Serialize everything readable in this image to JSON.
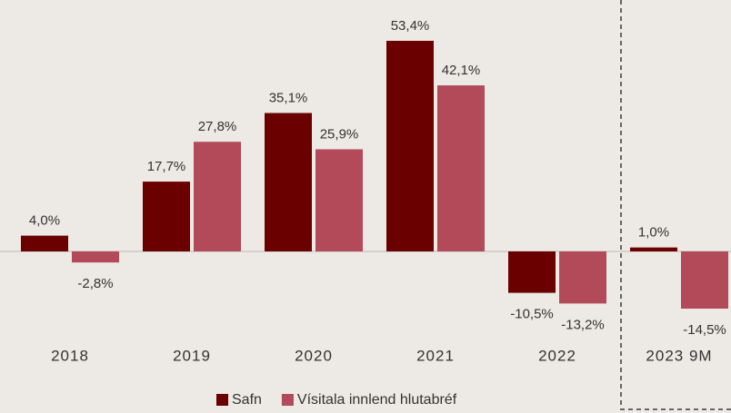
{
  "chart_data": {
    "type": "bar",
    "categories": [
      "2018",
      "2019",
      "2020",
      "2021",
      "2022",
      "2023 9M"
    ],
    "series": [
      {
        "name": "Safn",
        "color": "#6b0000",
        "values": [
          4.0,
          17.7,
          35.1,
          53.4,
          -10.5,
          1.0
        ],
        "value_labels": [
          "4,0%",
          "17,7%",
          "35,1%",
          "53,4%",
          "-10,5%",
          "1,0%"
        ]
      },
      {
        "name": "Vísitala innlend hlutabréf",
        "color": "#b24a5a",
        "values": [
          -2.8,
          27.8,
          25.9,
          42.1,
          -13.2,
          -14.5
        ],
        "value_labels": [
          "-2,8%",
          "27,8%",
          "25,9%",
          "42,1%",
          "-13,2%",
          "-14,5%"
        ]
      }
    ]
  }
}
